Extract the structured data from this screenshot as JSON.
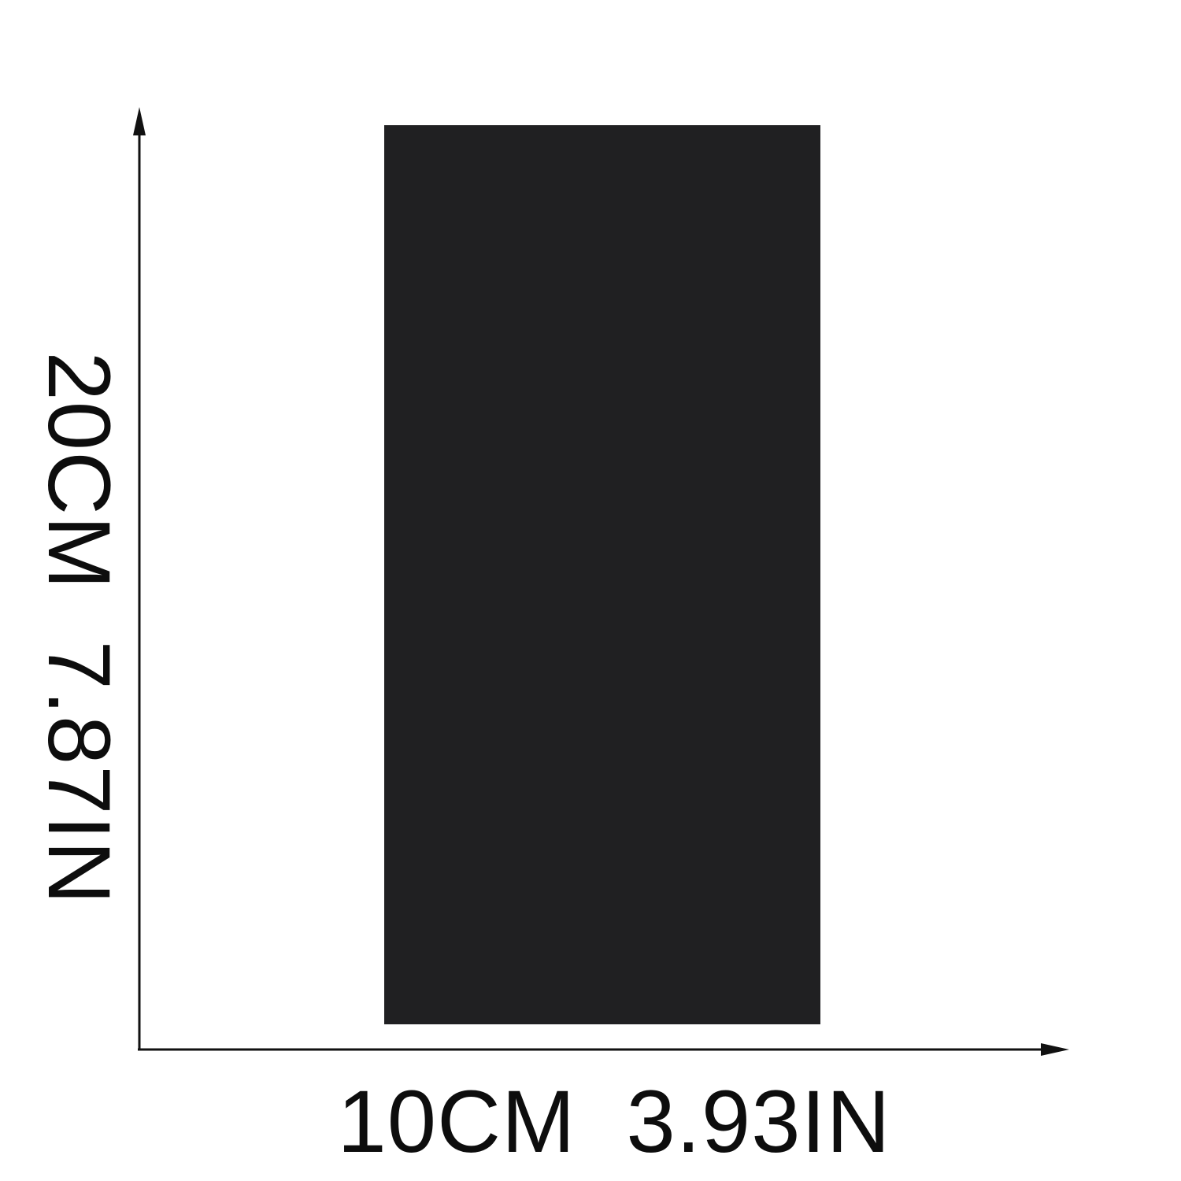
{
  "product": {
    "color": "#202022"
  },
  "dimensions": {
    "width_label": "10CM  3.93IN",
    "height_label": "20CM  7.87IN",
    "arrow_color": "#111111"
  }
}
